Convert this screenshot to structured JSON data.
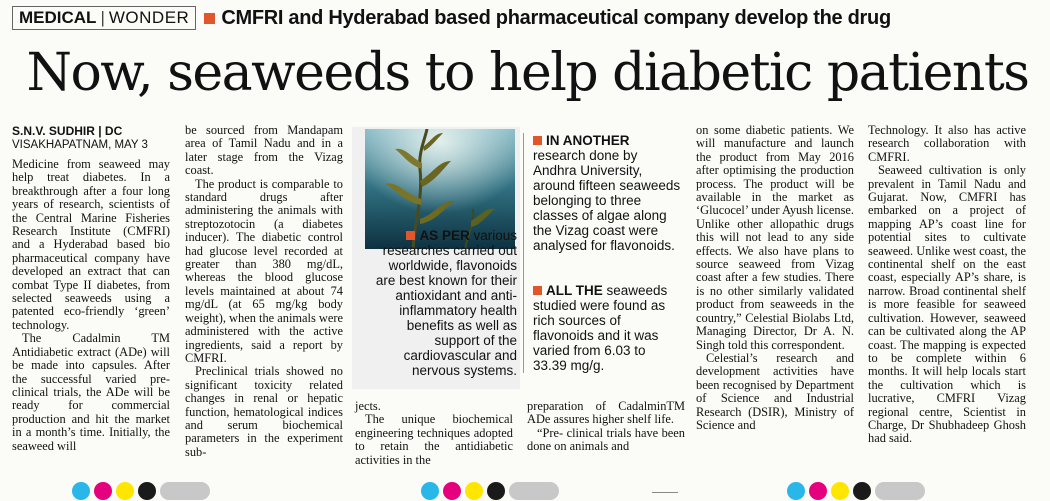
{
  "kicker": {
    "tag_a": "MEDICAL",
    "tag_b": "WONDER",
    "text": "CMFRI and Hyderabad based pharmaceutical company develop the drug"
  },
  "headline": "Now, seaweeds to help diabetic patients",
  "byline": {
    "author": "S.N.V. SUDHIR | DC",
    "dateline": "VISAKHAPATNAM, MAY 3"
  },
  "col1": [
    "Medicine from seaweed may help treat diabetes. In a breakthrough after a four long years of research, scientists of the Central Marine Fisheries Research Institute (CMFRI) and a Hyderabad based bio pharmaceutical company have developed an extract that can combat Type II diabetes, from selected seaweeds using a patented eco-friendly ‘green’ technology.",
    "The Cadalmin TM Antidiabetic extract (ADe) will be made into capsules. After the successful varied pre-clinical trials, the ADe will be ready for commercial production and hit the market in a month’s time. Initially, the seaweed will"
  ],
  "col2": [
    "be sourced from Mandapam area of Tamil Nadu and in a later stage from the Vizag coast.",
    "The product is comparable to standard drugs after administering the animals with streptozotocin (a diabetes inducer). The diabetic control had glucose level recorded at greater than 380 mg/dL, whereas the blood glucose levels maintained at about 74 mg/dL (at 65 mg/kg body weight), when the animals were administered with the active ingredients, said a report by CMFRI.",
    "Preclinical trials showed no significant toxicity related changes in renal or hepatic function, hematological indices and serum biochemical parameters in the experiment sub-"
  ],
  "col3_bottom": [
    "jects.",
    "The unique biochemical engineering techniques adopted to retain the antidiabetic activities in the"
  ],
  "col4_bottom": [
    "preparation of CadalminTM ADe assures higher shelf life.",
    "“Pre- clinical trials have been done on animals and"
  ],
  "pull1": {
    "lead": "AS PER",
    "text": "various researches carried out worldwide, flavonoids are best known for their antioxidant and anti-inflammatory health benefits as well as support of the cardiovascular and nervous systems."
  },
  "pull2": {
    "lead": "IN ANOTHER",
    "text": "research done by Andhra University, around fifteen seaweeds belonging to three classes of algae along the Vizag coast were analysed for flavonoids."
  },
  "pull3": {
    "lead": "ALL THE",
    "text": "seaweeds studied were found as rich sources of flavonoids and it was varied from 6.03 to 33.39 mg/g."
  },
  "col5": [
    "on some diabetic patients. We will manufacture and launch the product from May 2016 after optimising the production process. The product will be available in the market as ‘Glucocel’ under Ayush license. Unlike other allopathic drugs this will not lead to any side effects. We also have plans to source seaweed from Vizag coast after a few studies. There is no other similarly validated product from seaweeds in the country,” Celestial Biolabs Ltd, Managing Director, Dr A. N. Singh told this correspondent.",
    "Celestial’s research and development activities have been recognised by Department of Science and Industrial Research (DSIR), Ministry of Science and"
  ],
  "col6": [
    "Technology. It also has active research collaboration with CMFRI.",
    "Seaweed cultivation is only prevalent in Tamil Nadu and Gujarat. Now, CMFRI has embarked on a project of mapping AP’s coast line for potential sites to cultivate seaweed. Unlike west coast, the continental shelf on the east coast, especially AP’s share, is narrow. Broad continental shelf is more feasible for seaweed cultivation. However, seaweed can be cultivated along the AP coast. The mapping is expected to be complete within 6 months. It will help locals start the cultivation which is lucrative, CMFRI Vizag regional centre, Scientist in Charge, Dr Shubhadeep Ghosh had said."
  ],
  "colors": {
    "accent": "#e2562c",
    "cyan": "#29b6e8",
    "magenta": "#e5007e",
    "yellow": "#ffe600",
    "black": "#1a1a1a"
  }
}
